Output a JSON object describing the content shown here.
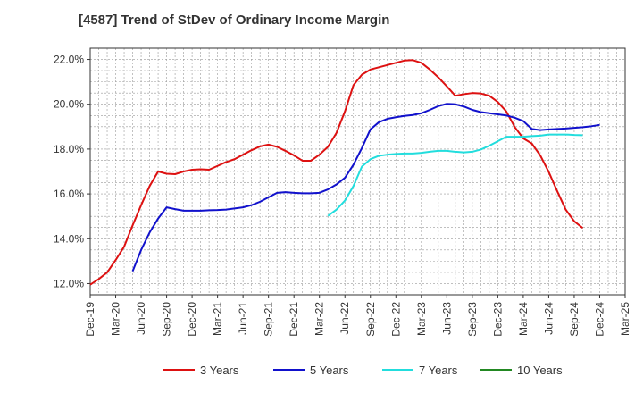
{
  "chart_data": {
    "type": "line",
    "title": "[4587]  Trend of StDev of Ordinary Income Margin",
    "xlabel": "",
    "ylabel": "",
    "x_ticks": [
      "Dec-19",
      "Mar-20",
      "Jun-20",
      "Sep-20",
      "Dec-20",
      "Mar-21",
      "Jun-21",
      "Sep-21",
      "Dec-21",
      "Mar-22",
      "Jun-22",
      "Sep-22",
      "Dec-22",
      "Mar-23",
      "Jun-23",
      "Sep-23",
      "Dec-23",
      "Mar-24",
      "Jun-24",
      "Sep-24",
      "Dec-24",
      "Mar-25"
    ],
    "y_ticks": [
      "12.0%",
      "14.0%",
      "16.0%",
      "18.0%",
      "20.0%",
      "22.0%"
    ],
    "y_tick_values": [
      12,
      14,
      16,
      18,
      20,
      22
    ],
    "ylim": [
      11.5,
      22.5
    ],
    "grid": true,
    "legend_position": "bottom",
    "series": [
      {
        "name": "3 Years",
        "color": "#dd1111",
        "start_index": 0,
        "values": [
          11.95,
          12.2,
          12.5,
          13.05,
          13.65,
          14.6,
          15.5,
          16.35,
          17.0,
          16.9,
          16.88,
          17.0,
          17.08,
          17.1,
          17.08,
          17.25,
          17.42,
          17.55,
          17.75,
          17.95,
          18.12,
          18.2,
          18.1,
          17.92,
          17.72,
          17.48,
          17.48,
          17.75,
          18.1,
          18.72,
          19.68,
          20.85,
          21.32,
          21.55,
          21.65,
          21.75,
          21.85,
          21.95,
          21.97,
          21.85,
          21.55,
          21.2,
          20.8,
          20.38,
          20.45,
          20.5,
          20.48,
          20.38,
          20.1,
          19.68,
          18.98,
          18.48,
          18.25,
          17.72,
          16.98,
          16.12,
          15.3,
          14.78,
          14.48
        ]
      },
      {
        "name": "5 Years",
        "color": "#1111cc",
        "start_index": 5,
        "values": [
          12.55,
          13.5,
          14.28,
          14.9,
          15.4,
          15.32,
          15.25,
          15.25,
          15.25,
          15.27,
          15.28,
          15.3,
          15.35,
          15.4,
          15.5,
          15.65,
          15.85,
          16.05,
          16.08,
          16.05,
          16.03,
          16.03,
          16.05,
          16.2,
          16.42,
          16.72,
          17.3,
          18.05,
          18.88,
          19.2,
          19.35,
          19.42,
          19.48,
          19.52,
          19.6,
          19.75,
          19.92,
          20.02,
          20.0,
          19.9,
          19.75,
          19.65,
          19.6,
          19.55,
          19.5,
          19.4,
          19.25,
          18.9,
          18.85,
          18.88,
          18.9,
          18.92,
          18.95,
          18.98,
          19.02,
          19.08
        ]
      },
      {
        "name": "7 Years",
        "color": "#22dddd",
        "start_index": 28,
        "values": [
          15.02,
          15.3,
          15.7,
          16.35,
          17.22,
          17.55,
          17.7,
          17.75,
          17.78,
          17.8,
          17.8,
          17.83,
          17.88,
          17.92,
          17.92,
          17.88,
          17.85,
          17.88,
          17.98,
          18.15,
          18.35,
          18.55,
          18.55,
          18.55,
          18.58,
          18.6,
          18.65,
          18.65,
          18.65,
          18.63,
          18.62
        ]
      },
      {
        "name": "10 Years",
        "color": "#228822",
        "start_index": 0,
        "values": []
      }
    ]
  }
}
